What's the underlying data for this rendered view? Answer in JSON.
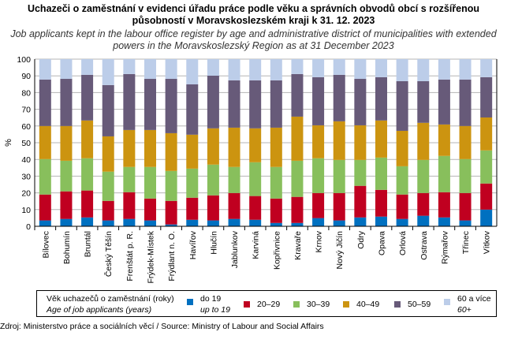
{
  "title_cs": "Uchazeči o zaměstnání v evidenci úřadu práce podle věku a správních obvodů obcí s rozšířenou působností v Moravskoslezském kraji k 31. 12. 2023",
  "title_en": "Job applicants kept in the labour office register by age and administrative district of municipalities with extended powers in the Moravskoslezský Region as at 31 December 2023",
  "source": "Zdroj: Ministerstvo práce a sociálních věcí / Source: Ministry of Labour and Social Affairs",
  "legend_title_cs": "Věk uchazečů o zaměstnání (roky)",
  "legend_title_en": "Age of job applicants (years)",
  "chart_data": {
    "type": "bar",
    "stacked": true,
    "ylabel": "%",
    "ylim": [
      0,
      100
    ],
    "yticks": [
      0,
      10,
      20,
      30,
      40,
      50,
      60,
      70,
      80,
      90,
      100
    ],
    "grid": true,
    "legend_position": "bottom",
    "categories": [
      "Bílovec",
      "Bohumín",
      "Bruntál",
      "Český Těšín",
      "Frenštát p. R.",
      "Frýdek-Místek",
      "Frýdlant n. O.",
      "Havířov",
      "Hlučín",
      "Jablunkov",
      "Karviná",
      "Kopřivnice",
      "Kravaře",
      "Krnov",
      "Nový Jičín",
      "Odry",
      "Opava",
      "Orlová",
      "Ostrava",
      "Rýmařov",
      "Třinec",
      "Vítkov"
    ],
    "series": [
      {
        "name": "do 19",
        "name_en": "up to 19",
        "color": "#0070c0",
        "values": [
          3.5,
          4.4,
          5.3,
          3.5,
          4.4,
          3.5,
          1.1,
          3.9,
          3.5,
          4.4,
          3.9,
          2.0,
          2.0,
          4.9,
          3.5,
          5.3,
          5.8,
          4.4,
          6.3,
          5.3,
          3.5,
          10.0
        ]
      },
      {
        "name": "20–29",
        "color": "#c00020",
        "values": [
          15.5,
          16.5,
          16.1,
          11.7,
          16.0,
          13.1,
          14.1,
          13.2,
          15.0,
          15.5,
          14.2,
          14.6,
          15.6,
          15.0,
          16.4,
          18.9,
          16.0,
          14.6,
          13.6,
          15.1,
          16.4,
          15.6
        ]
      },
      {
        "name": "30–39",
        "color": "#88bf5c",
        "values": [
          21.2,
          18.3,
          19.3,
          17.5,
          15.1,
          18.9,
          17.9,
          17.4,
          18.4,
          15.6,
          20.2,
          18.9,
          21.6,
          20.8,
          19.8,
          15.5,
          19.3,
          16.9,
          19.8,
          21.7,
          20.3,
          19.8
        ]
      },
      {
        "name": "40–49",
        "color": "#cc9410",
        "values": [
          19.8,
          20.8,
          22.6,
          21.1,
          22.1,
          22.1,
          22.6,
          20.3,
          21.7,
          23.5,
          20.3,
          23.5,
          26.4,
          19.7,
          23.1,
          20.7,
          22.2,
          21.2,
          22.2,
          18.8,
          19.8,
          19.7
        ]
      },
      {
        "name": "50–59",
        "color": "#675a79",
        "values": [
          27.8,
          28.2,
          27.3,
          30.7,
          33.5,
          30.6,
          32.5,
          30.1,
          31.5,
          28.3,
          28.7,
          28.3,
          25.5,
          28.8,
          27.8,
          27.8,
          25.9,
          29.7,
          24.9,
          26.9,
          27.8,
          24.1
        ]
      },
      {
        "name": "60 a více",
        "name_en": "60+",
        "color": "#bccde9",
        "values": [
          12.2,
          11.8,
          9.4,
          15.5,
          8.9,
          11.8,
          11.8,
          15.1,
          9.9,
          12.7,
          12.7,
          12.7,
          8.9,
          10.8,
          9.4,
          11.8,
          10.8,
          13.2,
          13.2,
          12.2,
          12.2,
          10.8
        ]
      }
    ]
  }
}
